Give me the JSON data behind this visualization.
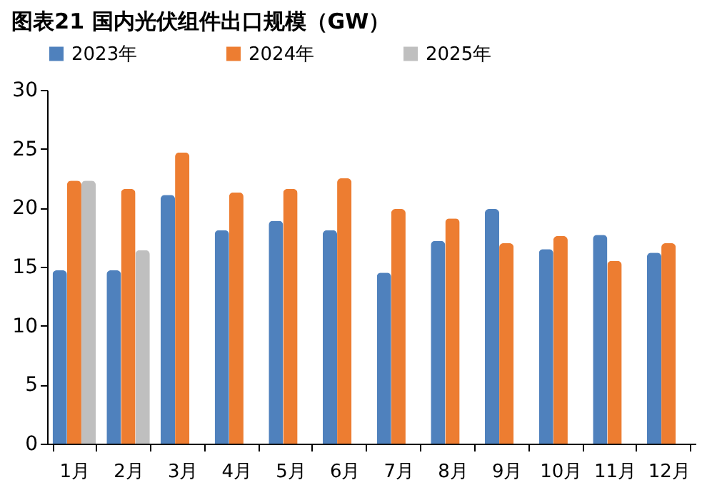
{
  "chart_data": {
    "type": "bar",
    "title": "图表21    国内光伏组件出口规模（GW）",
    "categories": [
      "1月",
      "2月",
      "3月",
      "4月",
      "5月",
      "6月",
      "7月",
      "8月",
      "9月",
      "10月",
      "11月",
      "12月"
    ],
    "series": [
      {
        "name": "2023年",
        "color": "#4f81bd",
        "values": [
          14.7,
          14.7,
          21.1,
          18.1,
          18.9,
          18.1,
          14.5,
          17.2,
          19.9,
          16.5,
          17.7,
          16.2
        ]
      },
      {
        "name": "2024年",
        "color": "#ed7d31",
        "values": [
          22.3,
          21.6,
          24.7,
          21.3,
          21.6,
          22.5,
          19.9,
          19.1,
          17.0,
          17.6,
          15.5,
          17.0
        ]
      },
      {
        "name": "2025年",
        "color": "#bfbfbf",
        "values": [
          22.3,
          16.4,
          null,
          null,
          null,
          null,
          null,
          null,
          null,
          null,
          null,
          null
        ]
      }
    ],
    "ylim": [
      0,
      30
    ],
    "yticks": [
      0,
      5,
      10,
      15,
      20,
      25,
      30
    ],
    "grid": false,
    "legend": "top"
  }
}
